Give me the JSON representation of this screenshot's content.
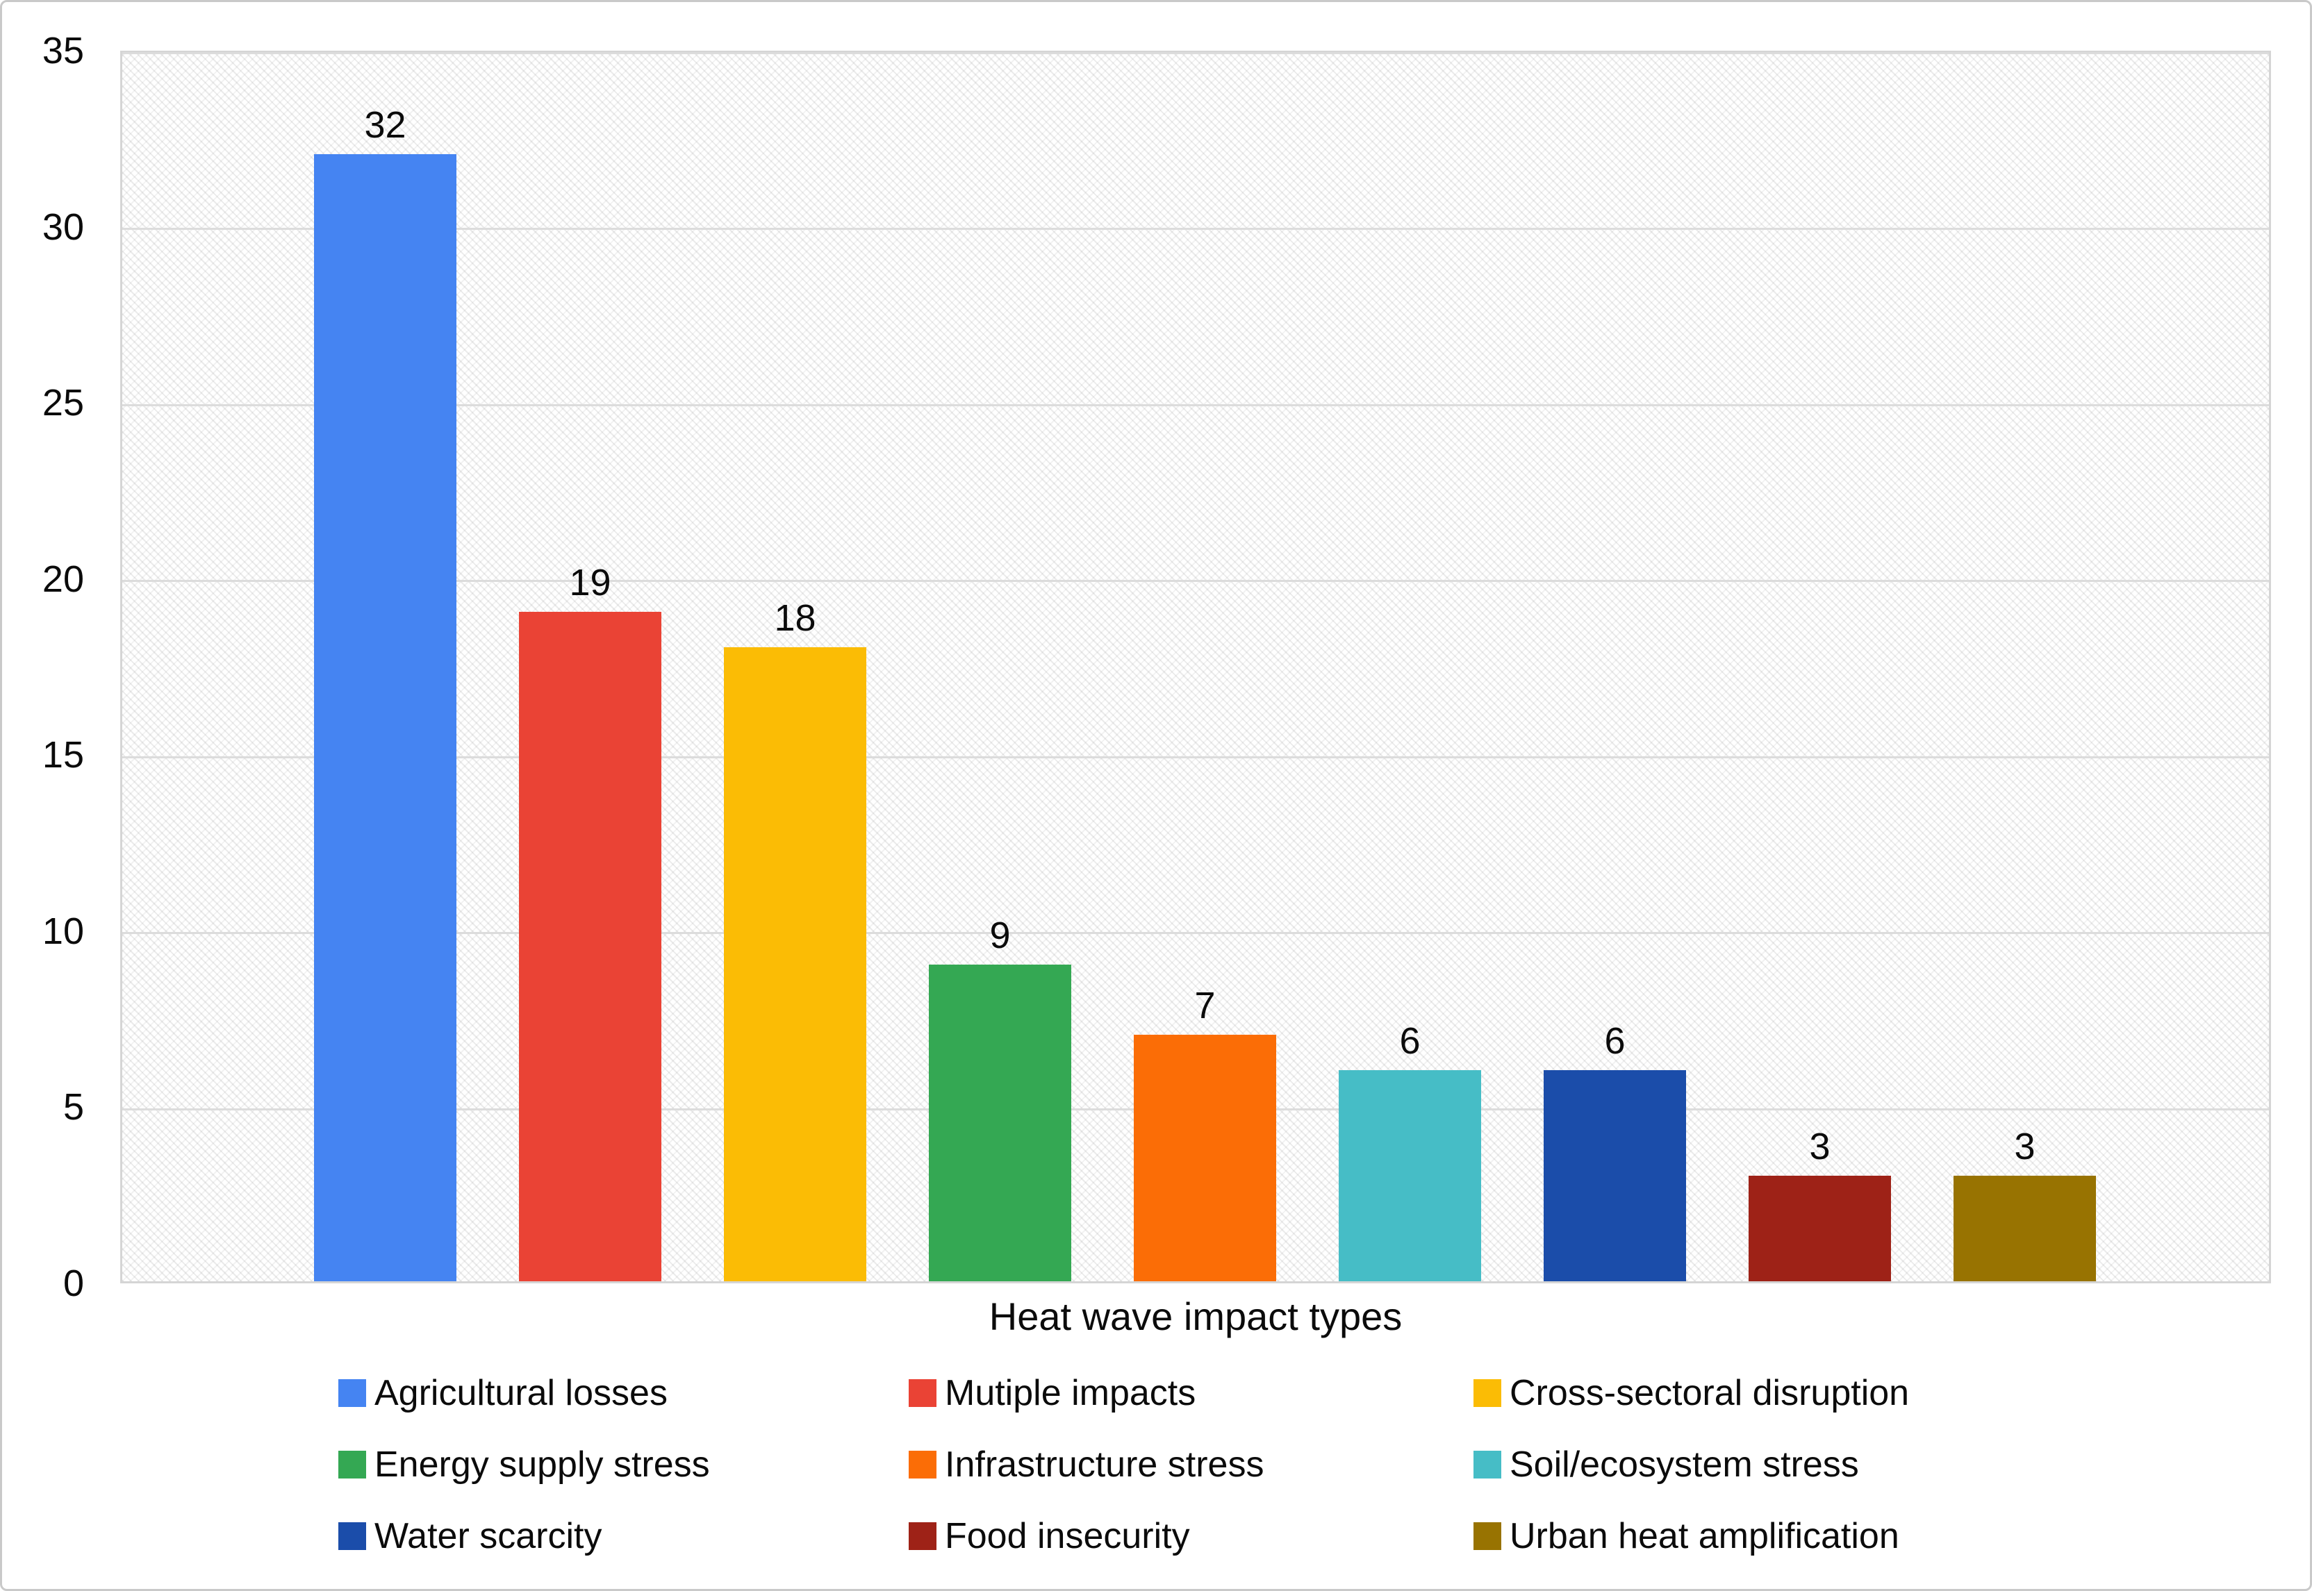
{
  "chart_data": {
    "type": "bar",
    "title": "",
    "xlabel": "Heat wave impact types",
    "ylabel": "",
    "ylim": [
      0,
      35
    ],
    "yticks": [
      0,
      5,
      10,
      15,
      20,
      25,
      30,
      35
    ],
    "grid": "horizontal",
    "legend_position": "bottom",
    "legend_columns": 3,
    "plot_background": "diagonal-hatch",
    "categories": [
      "Agricultural losses",
      "Mutiple impacts",
      "Cross-sectoral disruption",
      "Energy supply stress",
      "Infrastructure stress",
      "Soil/ecosystem stress",
      "Water scarcity",
      "Food insecurity",
      "Urban heat amplification"
    ],
    "values": [
      32,
      19,
      18,
      9,
      7,
      6,
      6,
      3,
      3
    ],
    "points": [
      {
        "label": "Agricultural losses",
        "value": 32,
        "color": "#4584F2"
      },
      {
        "label": "Mutiple impacts",
        "value": 19,
        "color": "#EA4335"
      },
      {
        "label": "Cross-sectoral disruption",
        "value": 18,
        "color": "#FBBC05"
      },
      {
        "label": "Energy supply stress",
        "value": 9,
        "color": "#34A853"
      },
      {
        "label": "Infrastructure stress",
        "value": 7,
        "color": "#FB6D06"
      },
      {
        "label": "Soil/ecosystem stress",
        "value": 6,
        "color": "#46BDC6"
      },
      {
        "label": "Water scarcity",
        "value": 6,
        "color": "#1B4DAA"
      },
      {
        "label": "Food insecurity",
        "value": 3,
        "color": "#9E2217"
      },
      {
        "label": "Urban heat amplification",
        "value": 3,
        "color": "#987301"
      }
    ],
    "colors": {
      "gridline": "#dcdcdc",
      "plot_border": "#d5d5d5",
      "figure_border": "#c9c9c9",
      "text": "#0b0b0b"
    }
  }
}
